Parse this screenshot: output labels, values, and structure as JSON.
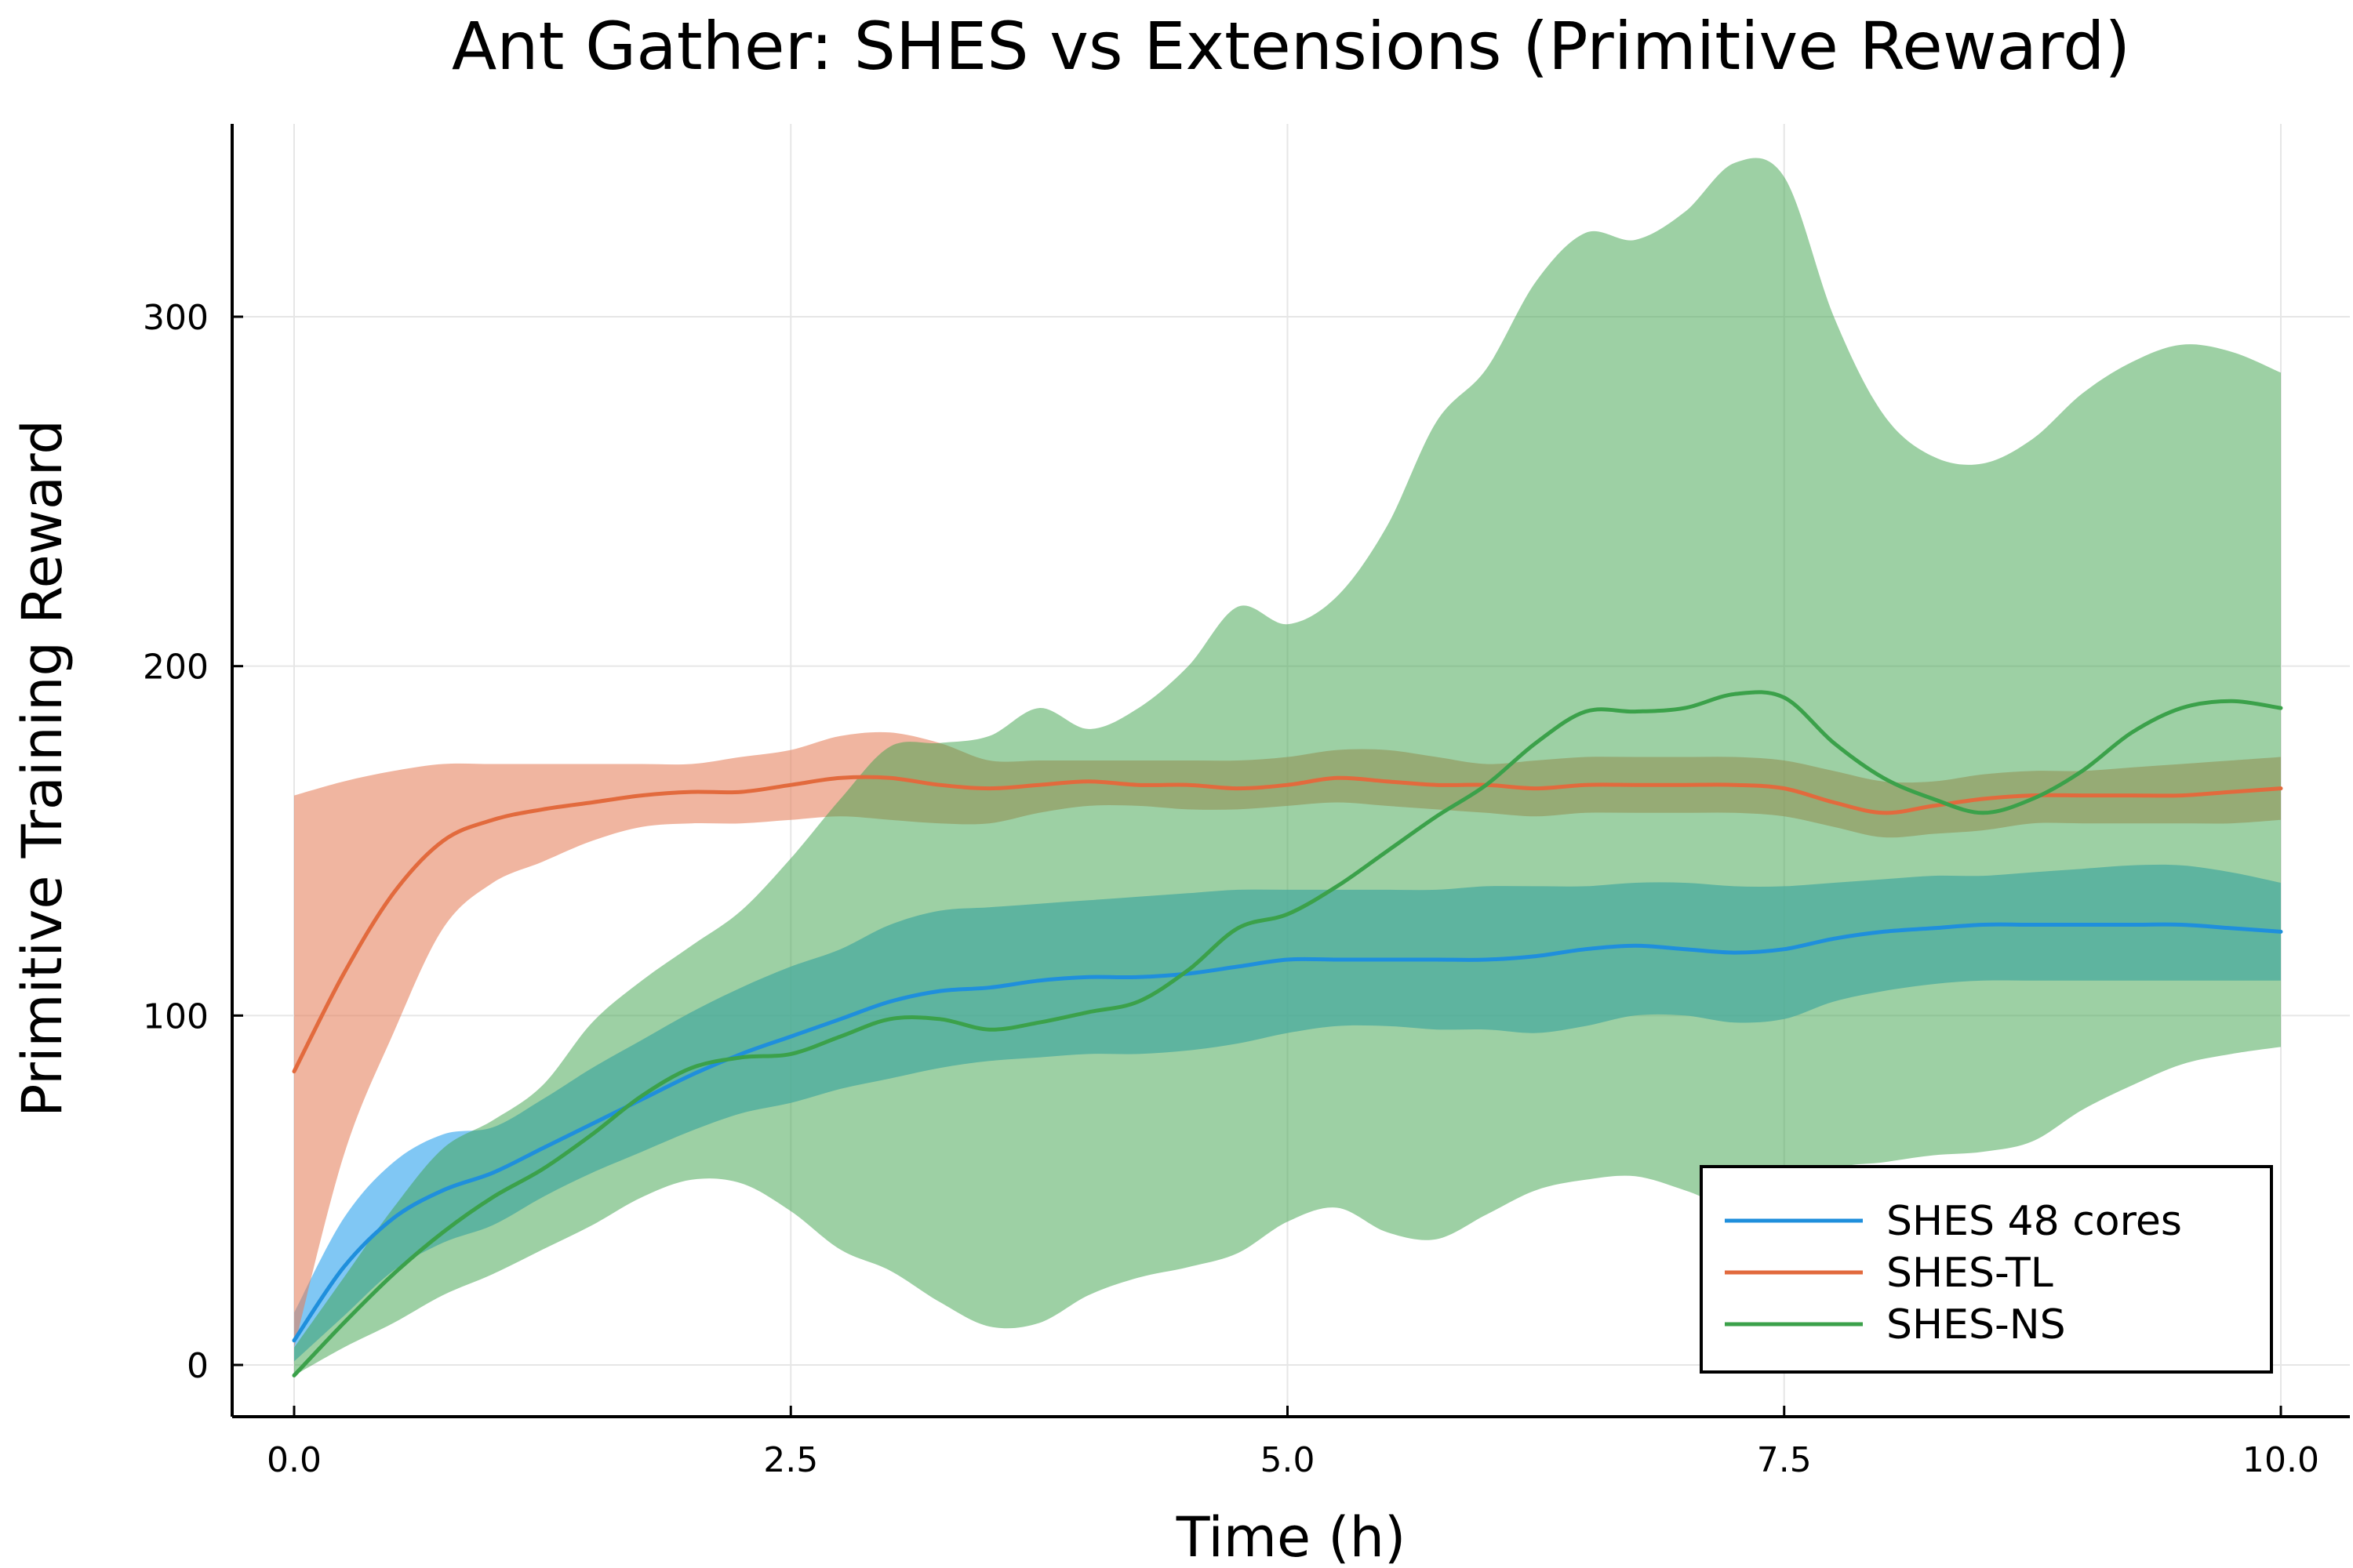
{
  "chart_data": {
    "type": "line",
    "title": "Ant Gather: SHES vs Extensions (Primitive Reward)",
    "xlabel": "Time (h)",
    "ylabel": "Primitive Training Reward",
    "xlim": [
      -0.3,
      10.3
    ],
    "ylim": [
      -15,
      355
    ],
    "xticks": [
      0,
      2.5,
      5,
      7.5,
      10
    ],
    "xtick_labels": [
      "0.0",
      "2.5",
      "5.0",
      "7.5",
      "10.0"
    ],
    "yticks": [
      0,
      100,
      200,
      300
    ],
    "ytick_labels": [
      "0",
      "100",
      "200",
      "300"
    ],
    "grid": true,
    "legend_position": "bottom-right",
    "x": [
      0,
      0.25,
      0.5,
      0.75,
      1,
      1.25,
      1.5,
      1.75,
      2,
      2.25,
      2.5,
      2.75,
      3,
      3.25,
      3.5,
      3.75,
      4,
      4.25,
      4.5,
      4.75,
      5,
      5.25,
      5.5,
      5.75,
      6,
      6.25,
      6.5,
      6.75,
      7,
      7.25,
      7.5,
      7.75,
      8,
      8.25,
      8.5,
      8.75,
      9,
      9.25,
      9.5,
      9.75,
      10
    ],
    "series": [
      {
        "name": "SHES 48 cores",
        "color": "#1f8fdc",
        "band_color": "#56b4f0",
        "band_opacity": 0.75,
        "mean": [
          7,
          28,
          42,
          50,
          55,
          62,
          69,
          76,
          83,
          89,
          94,
          99,
          104,
          107,
          108,
          110,
          111,
          111,
          112,
          114,
          116,
          116,
          116,
          116,
          116,
          117,
          119,
          120,
          119,
          118,
          119,
          122,
          124,
          125,
          126,
          126,
          126,
          126,
          126,
          125,
          124
        ],
        "upper": [
          15,
          42,
          58,
          66,
          68,
          76,
          85,
          93,
          101,
          108,
          114,
          119,
          126,
          130,
          131,
          132,
          133,
          134,
          135,
          136,
          136,
          136,
          136,
          136,
          137,
          137,
          137,
          138,
          138,
          137,
          137,
          138,
          139,
          140,
          140,
          141,
          142,
          143,
          143,
          141,
          138
        ],
        "lower": [
          1,
          14,
          27,
          35,
          40,
          48,
          55,
          61,
          67,
          72,
          75,
          79,
          82,
          85,
          87,
          88,
          89,
          89,
          90,
          92,
          95,
          97,
          97,
          96,
          96,
          95,
          97,
          100,
          100,
          98,
          99,
          104,
          107,
          109,
          110,
          110,
          110,
          110,
          110,
          110,
          110
        ]
      },
      {
        "name": "SHES-TL",
        "color": "#e26a3d",
        "band_color": "#e6805b",
        "band_opacity": 0.58,
        "mean": [
          84,
          112,
          135,
          150,
          156,
          159,
          161,
          163,
          164,
          164,
          166,
          168,
          168,
          166,
          165,
          166,
          167,
          166,
          166,
          165,
          166,
          168,
          167,
          166,
          166,
          165,
          166,
          166,
          166,
          166,
          165,
          161,
          158,
          160,
          162,
          163,
          163,
          163,
          163,
          164,
          165
        ],
        "upper": [
          163,
          167,
          170,
          172,
          172,
          172,
          172,
          172,
          172,
          174,
          176,
          180,
          181,
          178,
          173,
          173,
          173,
          173,
          173,
          173,
          174,
          176,
          176,
          174,
          172,
          173,
          174,
          174,
          174,
          174,
          173,
          170,
          167,
          167,
          169,
          170,
          170,
          171,
          172,
          173,
          174
        ],
        "lower": [
          5,
          60,
          95,
          125,
          138,
          144,
          150,
          154,
          155,
          155,
          156,
          157,
          156,
          155,
          155,
          158,
          160,
          160,
          159,
          159,
          160,
          161,
          160,
          159,
          158,
          157,
          158,
          158,
          158,
          158,
          157,
          154,
          151,
          152,
          153,
          155,
          155,
          155,
          155,
          155,
          156
        ]
      },
      {
        "name": "SHES-NS",
        "color": "#3ba14a",
        "band_color": "#3ba14a",
        "band_opacity": 0.5,
        "mean": [
          -3,
          12,
          26,
          38,
          48,
          56,
          66,
          77,
          85,
          88,
          89,
          94,
          99,
          99,
          96,
          98,
          101,
          104,
          113,
          125,
          129,
          137,
          147,
          157,
          166,
          178,
          187,
          187,
          188,
          192,
          191,
          178,
          168,
          162,
          158,
          162,
          170,
          181,
          188,
          190,
          188
        ],
        "upper": [
          5,
          25,
          45,
          62,
          70,
          80,
          98,
          110,
          120,
          130,
          145,
          162,
          177,
          178,
          180,
          188,
          182,
          188,
          200,
          217,
          212,
          220,
          240,
          270,
          285,
          310,
          324,
          322,
          330,
          344,
          340,
          300,
          272,
          260,
          258,
          265,
          278,
          287,
          292,
          290,
          284
        ],
        "lower": [
          -3,
          5,
          12,
          20,
          26,
          33,
          40,
          48,
          53,
          52,
          44,
          33,
          27,
          18,
          11,
          12,
          20,
          25,
          28,
          32,
          41,
          45,
          38,
          36,
          43,
          50,
          53,
          54,
          50,
          45,
          47,
          56,
          58,
          60,
          61,
          64,
          73,
          80,
          86,
          89,
          91
        ]
      }
    ]
  }
}
